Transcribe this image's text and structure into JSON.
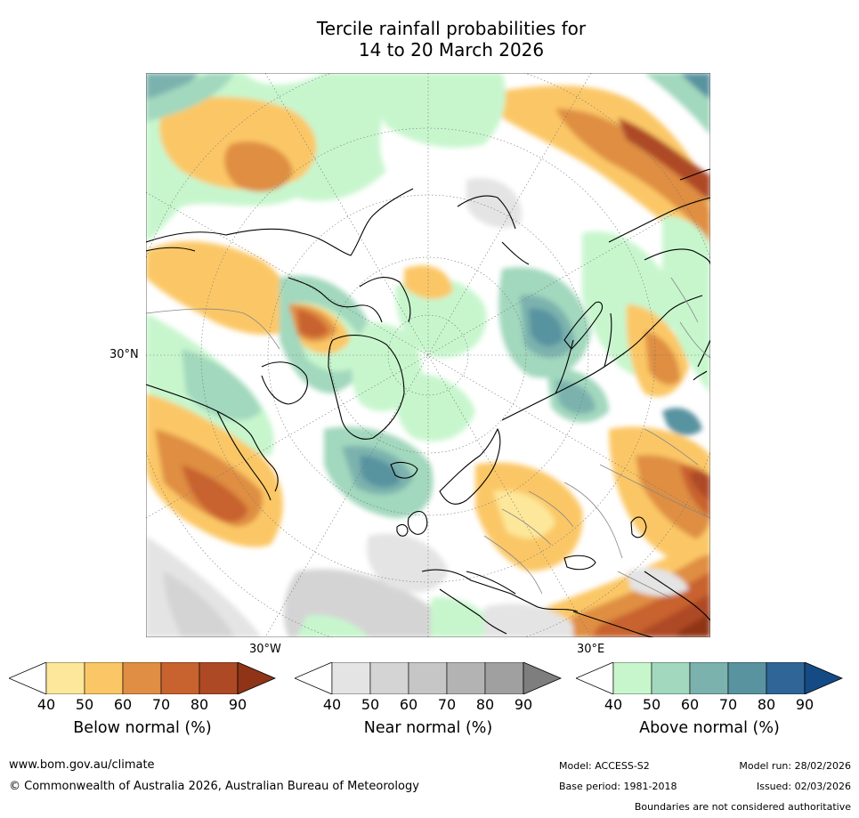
{
  "title": {
    "line1": "Tercile rainfall probabilities for",
    "line2": "14 to 20 March 2026"
  },
  "map": {
    "lat_label": "30°N",
    "lon_labels": {
      "west": "30°W",
      "east": "30°E"
    },
    "colors": {
      "ocean_bg": "#ffffff",
      "coast": "#000000",
      "border": "#888888",
      "grid": "#777777"
    }
  },
  "legends": [
    {
      "id": "below",
      "title": "Below normal (%)",
      "ticks": [
        "40",
        "50",
        "60",
        "70",
        "80",
        "90"
      ],
      "colors": [
        "#ffffff",
        "#fde79a",
        "#fbc766",
        "#df8e43",
        "#c8622f",
        "#ae4925",
        "#8f3417"
      ]
    },
    {
      "id": "near",
      "title": "Near normal (%)",
      "ticks": [
        "40",
        "50",
        "60",
        "70",
        "80",
        "90"
      ],
      "colors": [
        "#ffffff",
        "#e4e4e4",
        "#d4d4d4",
        "#c6c6c6",
        "#b3b3b3",
        "#a0a0a0",
        "#7e7e7e"
      ]
    },
    {
      "id": "above",
      "title": "Above normal (%)",
      "ticks": [
        "40",
        "50",
        "60",
        "70",
        "80",
        "90"
      ],
      "colors": [
        "#ffffff",
        "#c7f6cd",
        "#a2d8bd",
        "#7bb2ad",
        "#5993a0",
        "#2f6597",
        "#154b84"
      ]
    }
  ],
  "footer": {
    "website": "www.bom.gov.au/climate",
    "copyright": "© Commonwealth of Australia 2026, Australian Bureau of Meteorology",
    "model": "Model: ACCESS-S2",
    "base_period": "Base period: 1981-2018",
    "model_run": "Model run: 28/02/2026",
    "issued": "Issued: 02/03/2026",
    "disclaimer": "Boundaries are not considered authoritative"
  }
}
